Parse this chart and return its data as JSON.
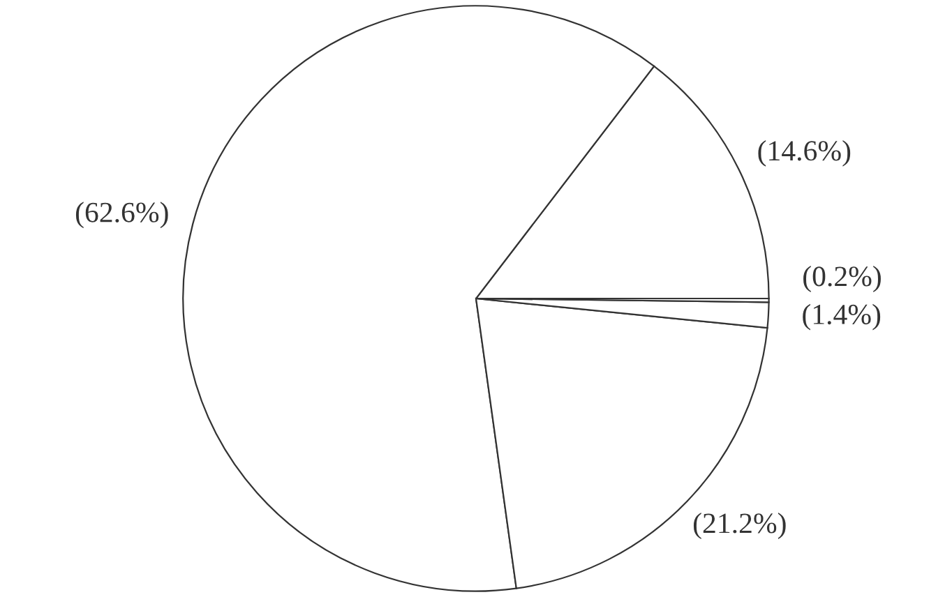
{
  "chart_data": {
    "type": "pie",
    "categories": [
      null,
      null,
      null,
      null,
      null
    ],
    "values": [
      14.6,
      62.6,
      21.2,
      1.4,
      0.2
    ],
    "colors": [
      "#ffffff",
      "#ffffff",
      "#ffffff",
      "#ffffff",
      "#ffffff"
    ],
    "value_labels": [
      "(14.6%)",
      "(62.6%)",
      "(21.2%)",
      "(1.4%)",
      "(0.2%)"
    ]
  }
}
